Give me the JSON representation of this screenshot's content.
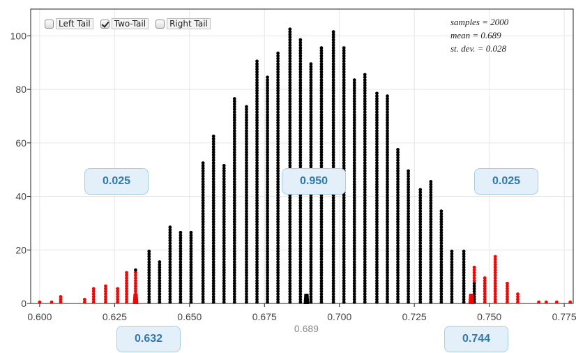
{
  "controls": {
    "left_tail": {
      "label": "Left Tail",
      "checked": false
    },
    "two_tail": {
      "label": "Two-Tail",
      "checked": true
    },
    "right_tail": {
      "label": "Right Tail",
      "checked": false
    }
  },
  "stats": {
    "samples": "samples = 2000",
    "mean": "mean = 0.689",
    "sd": "st. dev. = 0.028"
  },
  "proportions": {
    "left": "0.025",
    "middle": "0.950",
    "right": "0.025"
  },
  "bounds": {
    "lower": "0.632",
    "upper": "0.744",
    "mean_label": "0.689"
  },
  "colors": {
    "in_interval": "#000000",
    "tail": "#ff0000",
    "box_text": "#2e78b5",
    "box_bg": "#e3f0fa"
  },
  "chart_data": {
    "type": "dotplot",
    "xlim": [
      0.597,
      0.778
    ],
    "ylim": [
      0,
      110
    ],
    "x_ticks": [
      "0.600",
      "0.625",
      "0.650",
      "0.675",
      "0.700",
      "0.725",
      "0.750",
      "0.775"
    ],
    "y_ticks": [
      "0",
      "20",
      "40",
      "60",
      "80",
      "100"
    ],
    "grid": true,
    "mean_marker": 0.689,
    "lower_marker": 0.632,
    "upper_marker": 0.744,
    "stacks": [
      {
        "x": 0.6,
        "count": 1,
        "tail": true
      },
      {
        "x": 0.604,
        "count": 1,
        "tail": true
      },
      {
        "x": 0.607,
        "count": 3,
        "tail": true
      },
      {
        "x": 0.615,
        "count": 2,
        "tail": true
      },
      {
        "x": 0.618,
        "count": 6,
        "tail": true
      },
      {
        "x": 0.622,
        "count": 7,
        "tail": true
      },
      {
        "x": 0.626,
        "count": 6,
        "tail": true
      },
      {
        "x": 0.629,
        "count": 12,
        "tail": true
      },
      {
        "x": 0.632,
        "count": 13,
        "tail": true,
        "top_black": 1
      },
      {
        "x": 0.6365,
        "count": 20,
        "tail": false
      },
      {
        "x": 0.64,
        "count": 16,
        "tail": false
      },
      {
        "x": 0.6435,
        "count": 29,
        "tail": false
      },
      {
        "x": 0.647,
        "count": 27,
        "tail": false
      },
      {
        "x": 0.6505,
        "count": 27,
        "tail": false
      },
      {
        "x": 0.6545,
        "count": 53,
        "tail": false
      },
      {
        "x": 0.658,
        "count": 63,
        "tail": false
      },
      {
        "x": 0.6615,
        "count": 52,
        "tail": false
      },
      {
        "x": 0.665,
        "count": 77,
        "tail": false
      },
      {
        "x": 0.669,
        "count": 74,
        "tail": false
      },
      {
        "x": 0.6725,
        "count": 91,
        "tail": false
      },
      {
        "x": 0.676,
        "count": 85,
        "tail": false
      },
      {
        "x": 0.6795,
        "count": 94,
        "tail": false
      },
      {
        "x": 0.6835,
        "count": 103,
        "tail": false
      },
      {
        "x": 0.687,
        "count": 99,
        "tail": false
      },
      {
        "x": 0.6905,
        "count": 90,
        "tail": false
      },
      {
        "x": 0.694,
        "count": 96,
        "tail": false
      },
      {
        "x": 0.698,
        "count": 102,
        "tail": false
      },
      {
        "x": 0.7015,
        "count": 96,
        "tail": false
      },
      {
        "x": 0.705,
        "count": 84,
        "tail": false
      },
      {
        "x": 0.7085,
        "count": 86,
        "tail": false
      },
      {
        "x": 0.7125,
        "count": 79,
        "tail": false
      },
      {
        "x": 0.716,
        "count": 78,
        "tail": false
      },
      {
        "x": 0.7195,
        "count": 58,
        "tail": false
      },
      {
        "x": 0.723,
        "count": 50,
        "tail": false
      },
      {
        "x": 0.727,
        "count": 43,
        "tail": false
      },
      {
        "x": 0.7305,
        "count": 46,
        "tail": false
      },
      {
        "x": 0.734,
        "count": 35,
        "tail": false
      },
      {
        "x": 0.7375,
        "count": 20,
        "tail": false
      },
      {
        "x": 0.7415,
        "count": 20,
        "tail": false
      },
      {
        "x": 0.745,
        "count": 14,
        "tail": true,
        "bottom_black": 8
      },
      {
        "x": 0.7485,
        "count": 10,
        "tail": true
      },
      {
        "x": 0.752,
        "count": 18,
        "tail": true
      },
      {
        "x": 0.756,
        "count": 8,
        "tail": true
      },
      {
        "x": 0.7595,
        "count": 4,
        "tail": true
      },
      {
        "x": 0.7665,
        "count": 1,
        "tail": true
      },
      {
        "x": 0.769,
        "count": 1,
        "tail": true
      },
      {
        "x": 0.7725,
        "count": 1,
        "tail": true
      },
      {
        "x": 0.777,
        "count": 1,
        "tail": true
      }
    ]
  }
}
